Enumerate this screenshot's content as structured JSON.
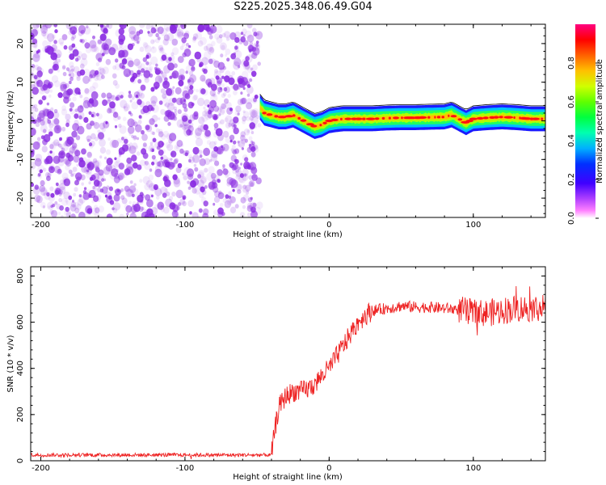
{
  "title": "S225.2025.348.06.49.G04",
  "colors": {
    "noise": "#8a2be2",
    "snr_line": "#ee2222",
    "colorbar": [
      "#ff00ff",
      "#8000ff",
      "#0000ff",
      "#00b4ff",
      "#00ff80",
      "#40ff00",
      "#ffff00",
      "#ff8000",
      "#ff0000",
      "#ff0060"
    ]
  },
  "chart_data": [
    {
      "type": "heatmap",
      "title": "S225.2025.348.06.49.G04",
      "xlabel": "Height of straight line (km)",
      "ylabel": "Frequency (Hz)",
      "xlim": [
        -207,
        150
      ],
      "ylim": [
        -25,
        25
      ],
      "xticks": [
        -200,
        -100,
        0,
        100
      ],
      "yticks": [
        -20,
        -10,
        0,
        10,
        20
      ],
      "noise_region_x": [
        -207,
        -48
      ],
      "ridge": {
        "x": [
          -48,
          -45,
          -40,
          -35,
          -30,
          -25,
          -20,
          -15,
          -10,
          -5,
          0,
          5,
          10,
          20,
          30,
          40,
          50,
          60,
          70,
          80,
          85,
          90,
          95,
          100,
          110,
          120,
          130,
          140,
          150
        ],
        "y": [
          3.5,
          2,
          1.5,
          1,
          1,
          1.5,
          0.5,
          -0.5,
          -1.5,
          -1,
          0,
          0.3,
          0.5,
          0.5,
          0.5,
          0.7,
          0.8,
          0.8,
          0.9,
          1,
          1.5,
          0.5,
          -0.5,
          0.5,
          0.8,
          1,
          0.8,
          0.5,
          0.5
        ]
      },
      "colorbar": {
        "label": "Normalized spectral amplitude",
        "ticks": [
          "0.0",
          "0.2",
          "0.4",
          "0.6",
          "0.8"
        ],
        "range": [
          0,
          1
        ]
      }
    },
    {
      "type": "line",
      "xlabel": "Height of straight line (km)",
      "ylabel": "SNR (10 * v/v)",
      "xlim": [
        -207,
        150
      ],
      "ylim": [
        0,
        840
      ],
      "xticks": [
        -200,
        -100,
        0,
        100
      ],
      "yticks": [
        0,
        200,
        400,
        600,
        800
      ],
      "series": [
        {
          "x": [
            -207,
            -150,
            -100,
            -50,
            -40,
            -38,
            -35,
            -30,
            -25,
            -20,
            -15,
            -10,
            -5,
            0,
            5,
            10,
            15,
            20,
            25,
            30,
            40,
            50,
            60,
            70,
            80,
            90,
            100,
            110,
            120,
            130,
            140,
            150
          ],
          "y": [
            25,
            25,
            25,
            25,
            25,
            120,
            230,
            280,
            300,
            300,
            310,
            330,
            370,
            400,
            450,
            500,
            550,
            600,
            630,
            650,
            660,
            670,
            665,
            665,
            660,
            655,
            640,
            640,
            650,
            660,
            660,
            665
          ]
        }
      ]
    }
  ]
}
